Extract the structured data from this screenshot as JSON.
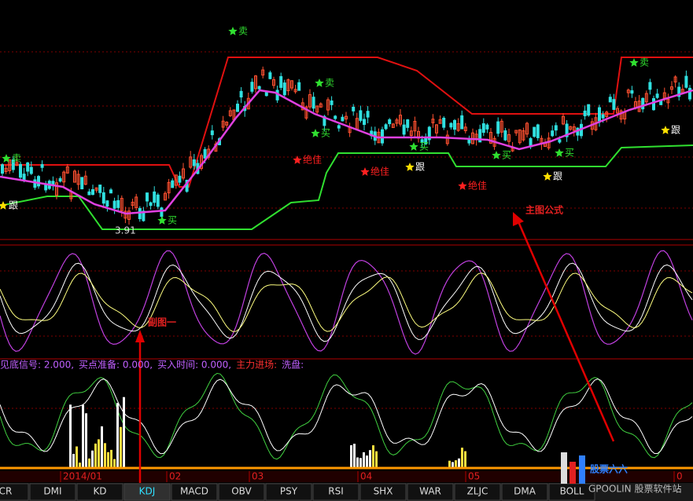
{
  "main": {
    "signals": [
      {
        "label": "卖",
        "kind": "sell"
      },
      {
        "label": "卖",
        "kind": "sell"
      },
      {
        "label": "卖",
        "kind": "sell"
      },
      {
        "label": "卖",
        "kind": "sell"
      },
      {
        "label": "买",
        "kind": "buy"
      },
      {
        "label": "买",
        "kind": "buy"
      },
      {
        "label": "买",
        "kind": "buy"
      },
      {
        "label": "买",
        "kind": "buy"
      },
      {
        "label": "买",
        "kind": "buy"
      },
      {
        "label": "跟",
        "kind": "follow"
      },
      {
        "label": "跟",
        "kind": "follow"
      },
      {
        "label": "跟",
        "kind": "follow"
      },
      {
        "label": "跟",
        "kind": "follow"
      },
      {
        "label": "绝佳",
        "kind": "best"
      },
      {
        "label": "绝佳",
        "kind": "best"
      },
      {
        "label": "绝佳",
        "kind": "best"
      }
    ],
    "low_label": "3.91",
    "annotation": "主图公式"
  },
  "sub1": {
    "annotation": "副图一"
  },
  "sub2": {
    "legend": [
      {
        "text": "见底信号: 2.000,",
        "color": "#c060ff"
      },
      {
        "text": "买点准备: 0.000,",
        "color": "#c060ff"
      },
      {
        "text": "买入时间: 0.000,",
        "color": "#c060ff"
      },
      {
        "text": "主力进场:",
        "color": "#ff3030"
      },
      {
        "text": "洗盘:",
        "color": "#c060ff"
      }
    ]
  },
  "dates": [
    "2014/01",
    "02",
    "03",
    "04",
    "05",
    "0"
  ],
  "tabs": [
    "CR",
    "DMI",
    "KD",
    "KDJ",
    "MACD",
    "OBV",
    "PSY",
    "RSI",
    "SHX",
    "WAR",
    "ZLJC",
    "DMA",
    "BOLL"
  ],
  "active_tab_index": 3,
  "watermark": {
    "brand": "股票六六",
    "site": "GPOOLIN 股票软件站"
  }
}
